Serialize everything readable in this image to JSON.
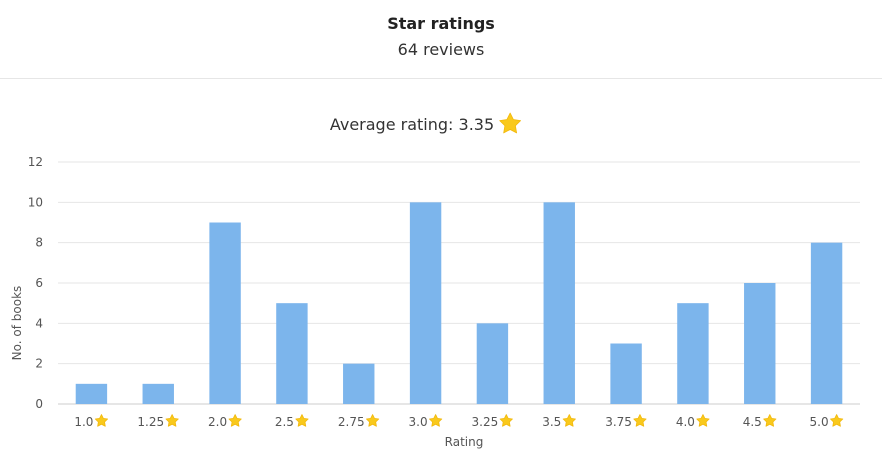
{
  "header": {
    "title": "Star ratings",
    "subtitle": "64 reviews"
  },
  "chart_data": {
    "type": "bar",
    "title": "Average rating: 3.35",
    "categories": [
      "1.0",
      "1.25",
      "2.0",
      "2.5",
      "2.75",
      "3.0",
      "3.25",
      "3.5",
      "3.75",
      "4.0",
      "4.5",
      "5.0"
    ],
    "values": [
      1,
      1,
      9,
      5,
      2,
      10,
      4,
      10,
      3,
      5,
      6,
      8
    ],
    "xlabel": "Rating",
    "ylabel": "No. of books",
    "ylim": [
      0,
      12
    ],
    "yticks": [
      0,
      2,
      4,
      6,
      8,
      10,
      12
    ],
    "grid": true,
    "legend": "none",
    "colors": {
      "bar": "#7cb5ec",
      "star": "#f9c91c",
      "grid": "#e6e6e6"
    },
    "tick_icon": "star-icon"
  }
}
